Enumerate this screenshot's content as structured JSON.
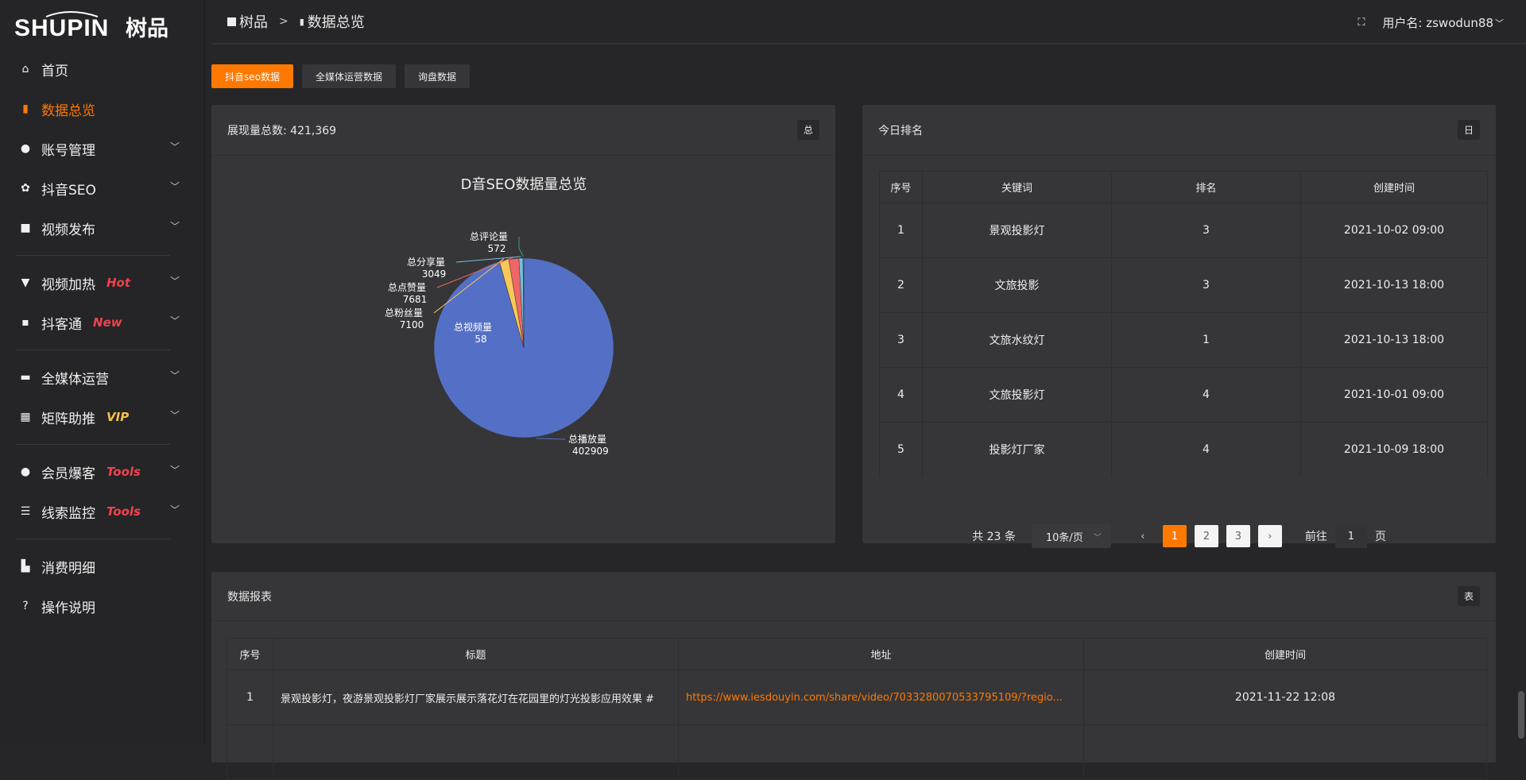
{
  "brand": {
    "logo_text": "SHUPIN 树品"
  },
  "sidebar": {
    "items": [
      {
        "label": "首页",
        "icon": "home-icon",
        "glyph": "⌂",
        "active": false,
        "chevron": false
      },
      {
        "label": "数据总览",
        "icon": "bar-chart-icon",
        "glyph": "▮",
        "active": true,
        "chevron": false
      },
      {
        "label": "账号管理",
        "icon": "user-icon",
        "glyph": "●",
        "active": false,
        "chevron": true
      },
      {
        "label": "抖音SEO",
        "icon": "gear-icon",
        "glyph": "✿",
        "active": false,
        "chevron": true
      },
      {
        "label": "视频发布",
        "icon": "camera-icon",
        "glyph": "■",
        "active": false,
        "chevron": true,
        "divider_after": true
      },
      {
        "label": "视频加热",
        "icon": "flag-icon",
        "glyph": "▼",
        "badge": "Hot",
        "badge_color": "#f0424d",
        "active": false,
        "chevron": true
      },
      {
        "label": "抖客通",
        "icon": "chat-icon",
        "glyph": "▪",
        "badge": "New",
        "badge_color": "#f0424d",
        "active": false,
        "chevron": true,
        "divider_after": true
      },
      {
        "label": "全媒体运营",
        "icon": "monitor-icon",
        "glyph": "▬",
        "active": false,
        "chevron": true
      },
      {
        "label": "矩阵助推",
        "icon": "grid-icon",
        "glyph": "▦",
        "badge": "VIP",
        "badge_color": "#f5c04a",
        "active": false,
        "chevron": true,
        "divider_after": true
      },
      {
        "label": "会员爆客",
        "icon": "user-icon",
        "glyph": "●",
        "badge": "Tools",
        "badge_color": "#f0424d",
        "active": false,
        "chevron": true
      },
      {
        "label": "线索监控",
        "icon": "sliders-icon",
        "glyph": "☰",
        "badge": "Tools",
        "badge_color": "#f0424d",
        "active": false,
        "chevron": true,
        "divider_after": true
      },
      {
        "label": "消费明细",
        "icon": "wallet-icon",
        "glyph": "▙",
        "active": false,
        "chevron": false
      },
      {
        "label": "操作说明",
        "icon": "help-icon",
        "glyph": "?",
        "active": false,
        "chevron": false
      }
    ]
  },
  "header": {
    "breadcrumb": [
      "树品",
      "数据总览"
    ],
    "separator": ">",
    "user_label": "用户名: zswodun88"
  },
  "tabs": [
    {
      "label": "抖音seo数据",
      "active": true
    },
    {
      "label": "全媒体运营数据",
      "active": false
    },
    {
      "label": "询盘数据",
      "active": false
    }
  ],
  "overview_card": {
    "title": "展现量总数: 421,369",
    "tag": "总"
  },
  "chart_data": {
    "type": "pie",
    "title": "D音SEO数据量总览",
    "categories": [
      "总播放量",
      "总视频量",
      "总粉丝量",
      "总点赞量",
      "总分享量",
      "总评论量"
    ],
    "values": [
      402909,
      58,
      7100,
      7681,
      3049,
      572
    ],
    "colors": [
      "#5470c6",
      "#91cc75",
      "#fac858",
      "#ee6666",
      "#73c0de",
      "#3ba272"
    ],
    "legend": "bottom"
  },
  "ranking_card": {
    "title": "今日排名",
    "tag": "日",
    "columns": [
      "序号",
      "关键词",
      "排名",
      "创建时间"
    ],
    "rows": [
      [
        "1",
        "景观投影灯",
        "3",
        "2021-10-02 09:00"
      ],
      [
        "2",
        "文旅投影",
        "3",
        "2021-10-13 18:00"
      ],
      [
        "3",
        "文旅水纹灯",
        "1",
        "2021-10-13 18:00"
      ],
      [
        "4",
        "文旅投影灯",
        "4",
        "2021-10-01 09:00"
      ],
      [
        "5",
        "投影灯厂家",
        "4",
        "2021-10-09 18:00"
      ]
    ],
    "pagination": {
      "total": "共 23 条",
      "page_size": "10条/页",
      "pages": [
        "1",
        "2",
        "3"
      ],
      "current": "1",
      "goto_label": "前往",
      "goto_value": "1",
      "page_unit": "页"
    }
  },
  "report_card": {
    "title": "数据报表",
    "tag": "表",
    "columns": [
      "序号",
      "标题",
      "地址",
      "创建时间"
    ],
    "rows": [
      [
        "1",
        "景观投影灯，夜游景观投影灯厂家展示展示落花灯在花园里的灯光投影应用效果 #",
        "https://www.iesdouyin.com/share/video/7033280070533795109/?regio...",
        "2021-11-22 12:08"
      ]
    ]
  }
}
